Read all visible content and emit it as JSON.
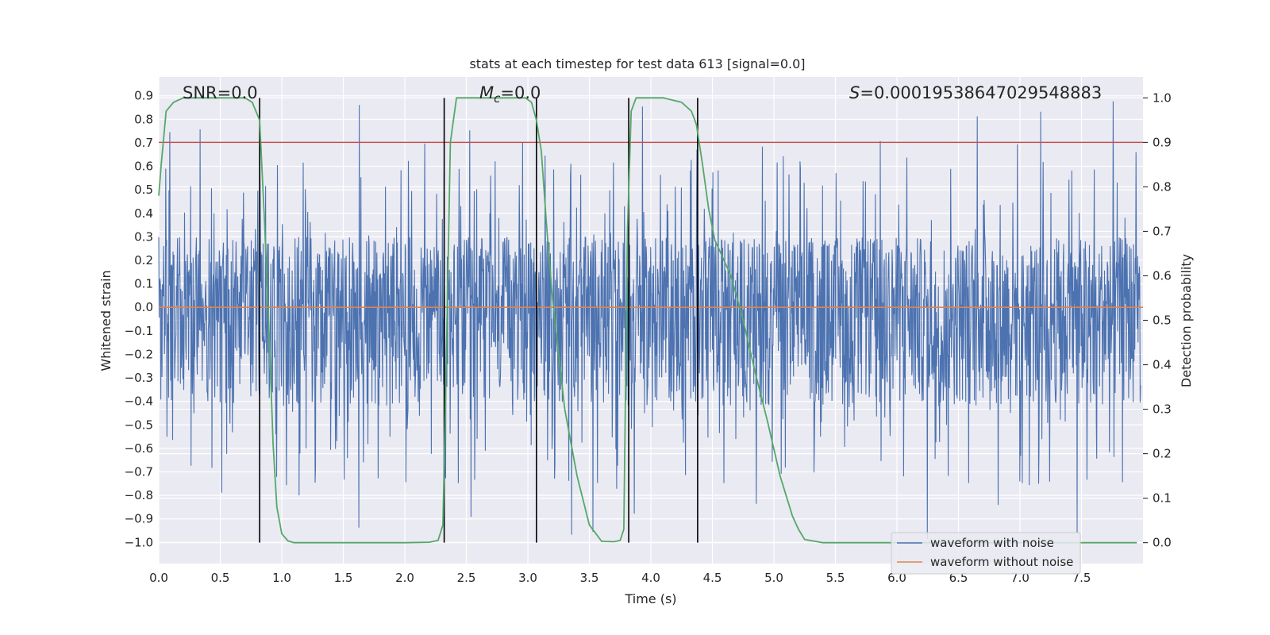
{
  "chart_data": {
    "type": "line",
    "title": "stats at each timestep for test data 613 [signal=0.0]",
    "xlabel": "Time (s)",
    "ylabel": "Whitened strain",
    "y2label": "Detection probability",
    "xlim": [
      0.0,
      8.0
    ],
    "ylim": [
      -1.09,
      0.98
    ],
    "y2lim": [
      -0.047,
      1.047
    ],
    "x_ticks": [
      "0.0",
      "0.5",
      "1.0",
      "1.5",
      "2.0",
      "2.5",
      "3.0",
      "3.5",
      "4.0",
      "4.5",
      "5.0",
      "5.5",
      "6.0",
      "6.5",
      "7.0",
      "7.5"
    ],
    "y_ticks": [
      "0.9",
      "0.8",
      "0.7",
      "0.6",
      "0.5",
      "0.4",
      "0.3",
      "0.2",
      "0.1",
      "0.0",
      "−0.1",
      "−0.2",
      "−0.3",
      "−0.4",
      "−0.5",
      "−0.6",
      "−0.7",
      "−0.8",
      "−0.9",
      "−1.0"
    ],
    "y2_ticks": [
      "1.0",
      "0.9",
      "0.8",
      "0.7",
      "0.6",
      "0.5",
      "0.4",
      "0.3",
      "0.2",
      "0.1",
      "0.0"
    ],
    "grid": true,
    "legend_position": "lower-right",
    "annotations": {
      "snr": "SNR=0.0",
      "mc_symbol": "M",
      "mc_sub": "c",
      "mc_value": "=0.0",
      "s_symbol": "S",
      "s_value": "=0.00019538647029548883"
    },
    "series": [
      {
        "name": "waveform with noise",
        "color": "#4c72b0",
        "axis": "left",
        "noise_envelope": {
          "typical_max": 0.3,
          "typical_min": -0.42,
          "peak_max": 0.88,
          "peak_min": -0.99,
          "points": 2400
        }
      },
      {
        "name": "waveform without noise",
        "color": "#dd8452",
        "axis": "left",
        "x": [
          0.0,
          8.0
        ],
        "y": [
          0.0,
          0.0
        ]
      },
      {
        "color": "#55a868",
        "axis": "right",
        "x": [
          0.0,
          0.02,
          0.06,
          0.12,
          0.2,
          0.3,
          0.5,
          0.7,
          0.76,
          0.82,
          0.86,
          0.9,
          0.93,
          0.96,
          1.0,
          1.05,
          1.1,
          1.3,
          1.6,
          2.0,
          2.2,
          2.27,
          2.31,
          2.34,
          2.37,
          2.42,
          2.6,
          2.8,
          2.98,
          3.03,
          3.07,
          3.11,
          3.15,
          3.2,
          3.3,
          3.4,
          3.5,
          3.6,
          3.7,
          3.75,
          3.78,
          3.81,
          3.84,
          3.88,
          3.95,
          4.1,
          4.25,
          4.33,
          4.37,
          4.42,
          4.47,
          4.52,
          4.57,
          4.65,
          4.75,
          4.85,
          4.95,
          5.05,
          5.15,
          5.2,
          5.25,
          5.4,
          5.8,
          6.5,
          7.2,
          7.95
        ],
        "y": [
          0.78,
          0.85,
          0.97,
          0.99,
          1.0,
          1.0,
          1.0,
          1.0,
          0.99,
          0.95,
          0.72,
          0.45,
          0.22,
          0.08,
          0.02,
          0.004,
          0.0,
          0.0,
          0.0,
          0.0,
          0.001,
          0.005,
          0.04,
          0.45,
          0.9,
          1.0,
          1.0,
          1.0,
          1.0,
          0.99,
          0.95,
          0.88,
          0.72,
          0.55,
          0.3,
          0.15,
          0.04,
          0.003,
          0.002,
          0.005,
          0.03,
          0.7,
          0.97,
          1.0,
          1.0,
          1.0,
          0.99,
          0.97,
          0.94,
          0.85,
          0.75,
          0.68,
          0.65,
          0.6,
          0.5,
          0.38,
          0.27,
          0.15,
          0.06,
          0.03,
          0.007,
          0.0,
          0.0,
          0.0,
          0.0,
          0.0
        ]
      }
    ],
    "vertical_lines_x": [
      0.82,
      2.32,
      3.07,
      3.82,
      4.38
    ],
    "threshold_y2": 0.9,
    "threshold_color": "#c44e52"
  }
}
